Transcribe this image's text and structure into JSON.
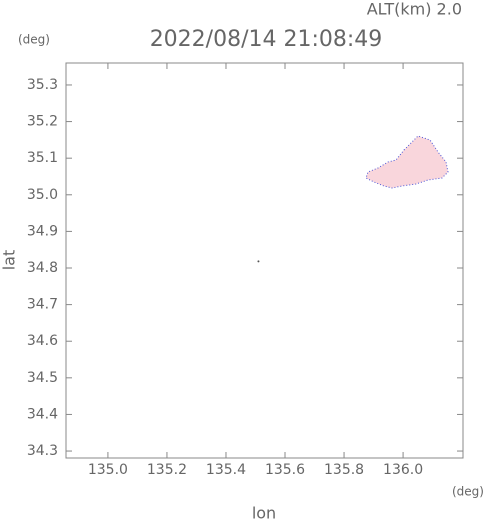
{
  "chart_data": {
    "type": "scatter",
    "title": "2022/08/14 21:08:49",
    "annotation": "ALT(km) 2.0",
    "y_unit": "(deg)",
    "x_unit": "(deg)",
    "xlabel": "lon",
    "ylabel": "lat",
    "x": [
      135.51
    ],
    "values": [
      34.818
    ],
    "color": "#555555",
    "xlim": [
      134.858,
      136.203
    ],
    "xticks": [
      {
        "value": 135,
        "label": "135.0"
      },
      135.2,
      135.4,
      135.6,
      135.8,
      {
        "value": 136,
        "label": "136.0"
      }
    ],
    "ylim": [
      34.281,
      35.36
    ],
    "yticks": [
      34.3,
      34.4,
      34.5,
      34.6,
      34.7,
      34.8,
      34.9,
      {
        "value": 35,
        "label": "35.0"
      },
      35.1,
      35.2,
      35.3
    ]
  }
}
